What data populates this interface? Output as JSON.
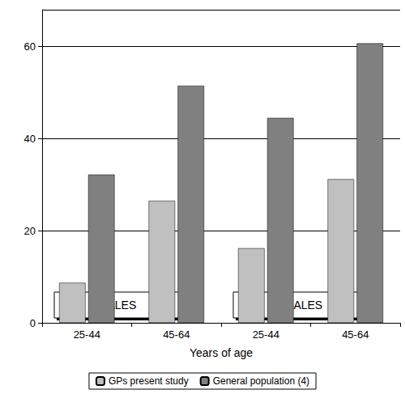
{
  "chart_data": {
    "type": "bar",
    "categories": [
      "25-44",
      "45-64",
      "25-44",
      "45-64"
    ],
    "x_label": "Years of age",
    "series": [
      {
        "name": "GPs present study",
        "color": "#c0c0c0",
        "values": [
          8.7,
          26.5,
          16.2,
          31.2
        ]
      },
      {
        "name": "General population (4)",
        "color": "#808080",
        "values": [
          32.2,
          51.5,
          44.5,
          60.7
        ]
      }
    ],
    "ylim": [
      0,
      68
    ],
    "yticks": [
      0,
      20,
      40,
      60
    ],
    "grid": true,
    "legend": "bottom",
    "annotations": [
      "MALES",
      "FEMALES"
    ]
  }
}
